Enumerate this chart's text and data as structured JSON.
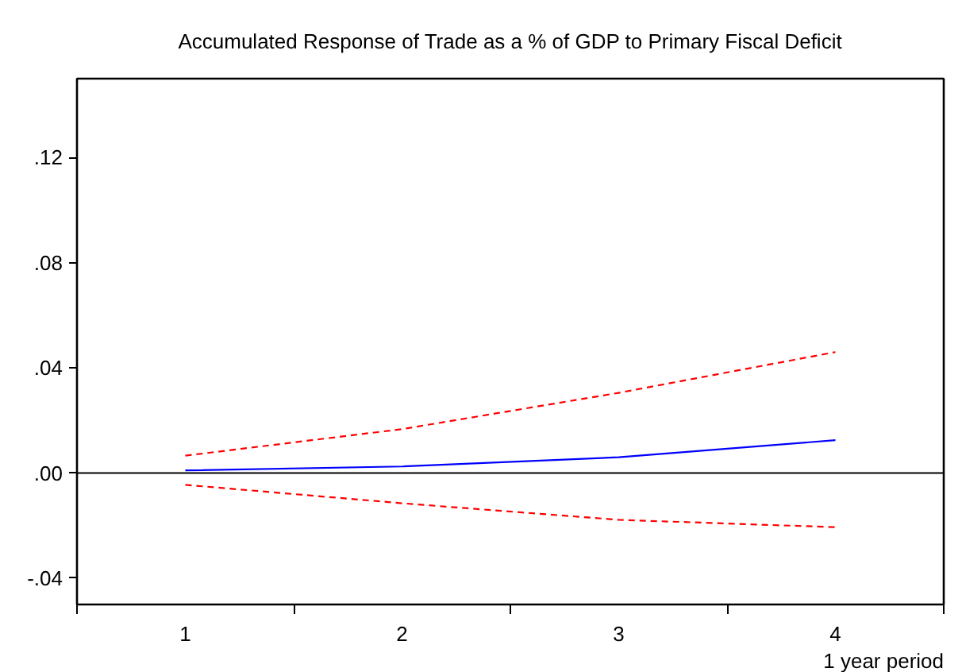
{
  "chart_data": {
    "type": "line",
    "title": "Accumulated Response of Trade as a % of GDP to Primary Fiscal Deficit",
    "xlabel": "1 year period",
    "categories": [
      "1",
      "2",
      "3",
      "4"
    ],
    "series": [
      {
        "color": "#0000ff",
        "line_style": "solid",
        "values": [
          0.001,
          0.0025,
          0.006,
          0.0125
        ]
      },
      {
        "color": "#ff0000",
        "line_style": "dashed",
        "values": [
          0.0066,
          0.0167,
          0.0305,
          0.046
        ]
      },
      {
        "color": "#ff0000",
        "line_style": "dashed",
        "values": [
          -0.0045,
          -0.0115,
          -0.0178,
          -0.0206
        ]
      }
    ],
    "ylim": [
      -0.05,
      0.15
    ],
    "yticks": [
      {
        "value": -0.04,
        "label": "-.04"
      },
      {
        "value": 0,
        "label": ".00"
      },
      {
        "value": 0.04,
        "label": ".04"
      },
      {
        "value": 0.08,
        "label": ".08"
      },
      {
        "value": 0.12,
        "label": ".12"
      }
    ],
    "ref_lines": [
      {
        "axis": "y",
        "value": 0,
        "color": "#000000"
      }
    ],
    "grid": false
  }
}
